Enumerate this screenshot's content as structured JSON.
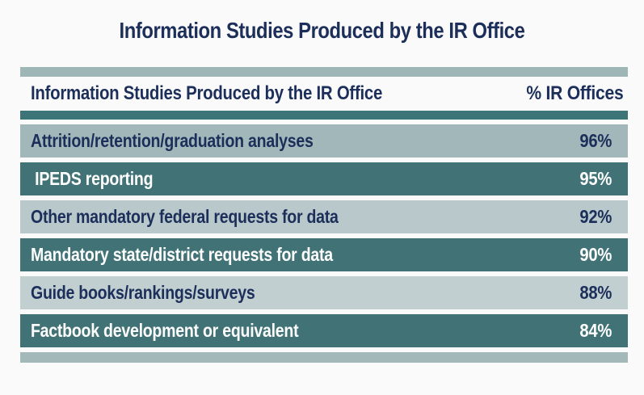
{
  "title": "Information Studies Produced by the IR Office",
  "table": {
    "columns": [
      "Information Studies Produced by the IR Office",
      "% IR Offices"
    ],
    "rows": [
      {
        "label": "Attrition/retention/graduation analyses",
        "value": "96%"
      },
      {
        "label": " IPEDS reporting",
        "value": "95%"
      },
      {
        "label": "Other mandatory federal requests for data",
        "value": "92%"
      },
      {
        "label": "Mandatory state/district requests for data",
        "value": "90%"
      },
      {
        "label": "Guide books/rankings/surveys",
        "value": "88%"
      },
      {
        "label": "Factbook development or equivalent",
        "value": "84%"
      }
    ]
  },
  "chart_data": {
    "type": "table",
    "title": "Information Studies Produced by the IR Office",
    "columns": [
      "Information Studies Produced by the IR Office",
      "% IR Offices"
    ],
    "categories": [
      "Attrition/retention/graduation analyses",
      "IPEDS reporting",
      "Other mandatory federal requests for data",
      "Mandatory state/district requests for data",
      "Guide books/rankings/surveys",
      "Factbook development or equivalent"
    ],
    "values": [
      96,
      95,
      92,
      90,
      88,
      84
    ],
    "value_unit": "%"
  },
  "colors": {
    "background": "#fbfafa",
    "navy_text": "#1c2f5a",
    "white_text": "#fdfdfd",
    "top_bar": "#9fb6b6",
    "header_rule": "#3d7478",
    "dark_row": "#407276",
    "light_row_1": "#a2b7b9",
    "light_row_2": "#b9c9cb",
    "light_row_3": "#c2cfd0",
    "bottom_bar": "#a3b9b9"
  }
}
